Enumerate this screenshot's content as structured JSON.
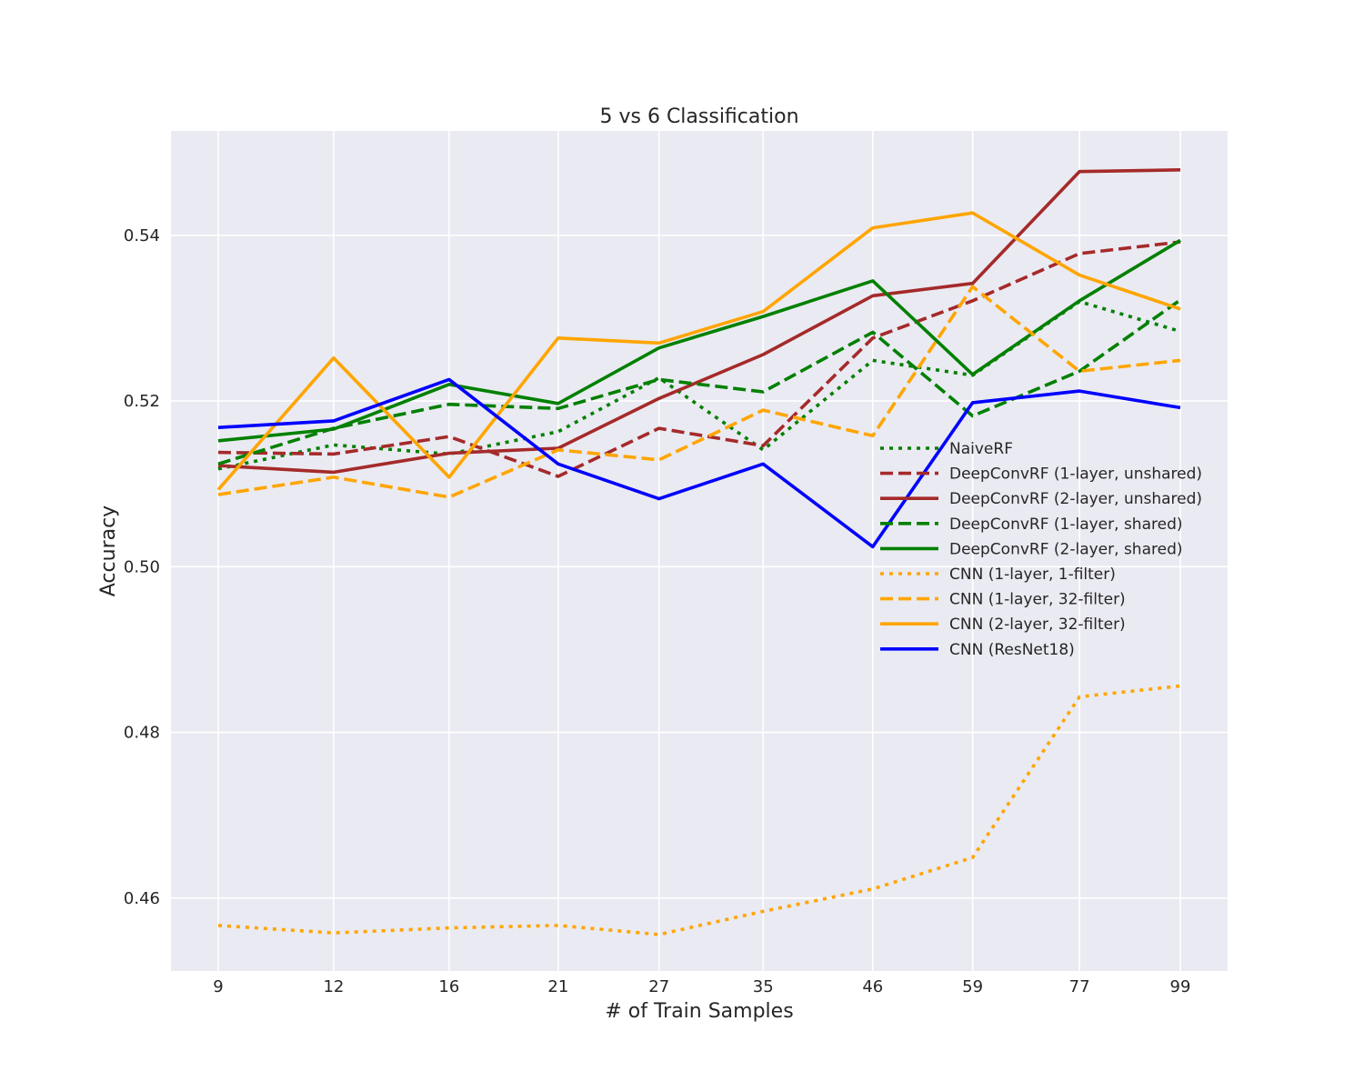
{
  "chart_data": {
    "type": "line",
    "title": "5 vs 6 Classification",
    "xlabel": "# of Train Samples",
    "ylabel": "Accuracy",
    "x_scale": "log",
    "x": [
      9,
      12,
      16,
      21,
      27,
      35,
      46,
      59,
      77,
      99
    ],
    "x_tick_labels": [
      "9",
      "12",
      "16",
      "21",
      "27",
      "35",
      "46",
      "59",
      "77",
      "99"
    ],
    "ylim": [
      0.4512,
      0.5526
    ],
    "y_ticks": [
      0.46,
      0.48,
      0.5,
      0.52,
      0.54
    ],
    "y_tick_labels": [
      "0.46",
      "0.48",
      "0.50",
      "0.52",
      "0.54"
    ],
    "grid": true,
    "background": "#eaeaf2",
    "legend_position": "center-right",
    "series": [
      {
        "name": "NaiveRF",
        "color": "#008000",
        "dash": "dotted",
        "values": [
          0.5118,
          0.5147,
          0.5136,
          0.5163,
          0.5228,
          0.5141,
          0.5249,
          0.5231,
          0.532,
          0.5284
        ]
      },
      {
        "name": "DeepConvRF (1-layer, unshared)",
        "color": "#a52a2a",
        "dash": "dashed",
        "values": [
          0.5138,
          0.5136,
          0.5157,
          0.5109,
          0.5167,
          0.5146,
          0.5276,
          0.5321,
          0.5378,
          0.5392
        ]
      },
      {
        "name": "DeepConvRF (2-layer, unshared)",
        "color": "#a52a2a",
        "dash": "solid",
        "values": [
          0.5122,
          0.5114,
          0.5137,
          0.5143,
          0.5203,
          0.5256,
          0.5327,
          0.5342,
          0.5477,
          0.5479
        ]
      },
      {
        "name": "DeepConvRF (1-layer, shared)",
        "color": "#008000",
        "dash": "dashed",
        "values": [
          0.5124,
          0.5167,
          0.5196,
          0.5191,
          0.5226,
          0.5211,
          0.5283,
          0.5182,
          0.5236,
          0.5322
        ]
      },
      {
        "name": "DeepConvRF (2-layer, shared)",
        "color": "#008000",
        "dash": "solid",
        "values": [
          0.5152,
          0.5166,
          0.522,
          0.5197,
          0.5264,
          0.5302,
          0.5345,
          0.5232,
          0.5321,
          0.5394
        ]
      },
      {
        "name": "CNN (1-layer, 1-filter)",
        "color": "#ffa500",
        "dash": "dotted",
        "values": [
          0.4567,
          0.4558,
          0.4564,
          0.4567,
          0.4556,
          0.4584,
          0.4611,
          0.4649,
          0.4843,
          0.4856
        ]
      },
      {
        "name": "CNN (1-layer, 32-filter)",
        "color": "#ffa500",
        "dash": "dashed",
        "values": [
          0.5087,
          0.5108,
          0.5084,
          0.5141,
          0.5129,
          0.5189,
          0.5158,
          0.5338,
          0.5236,
          0.5249
        ]
      },
      {
        "name": "CNN (2-layer, 32-filter)",
        "color": "#ffa500",
        "dash": "solid",
        "values": [
          0.5093,
          0.5252,
          0.5108,
          0.5276,
          0.527,
          0.5308,
          0.5409,
          0.5427,
          0.5352,
          0.5311
        ]
      },
      {
        "name": "CNN (ResNet18)",
        "color": "#0000ff",
        "dash": "solid",
        "values": [
          0.5168,
          0.5176,
          0.5226,
          0.5124,
          0.5082,
          0.5124,
          0.5024,
          0.5198,
          0.5212,
          0.5192
        ]
      }
    ]
  }
}
